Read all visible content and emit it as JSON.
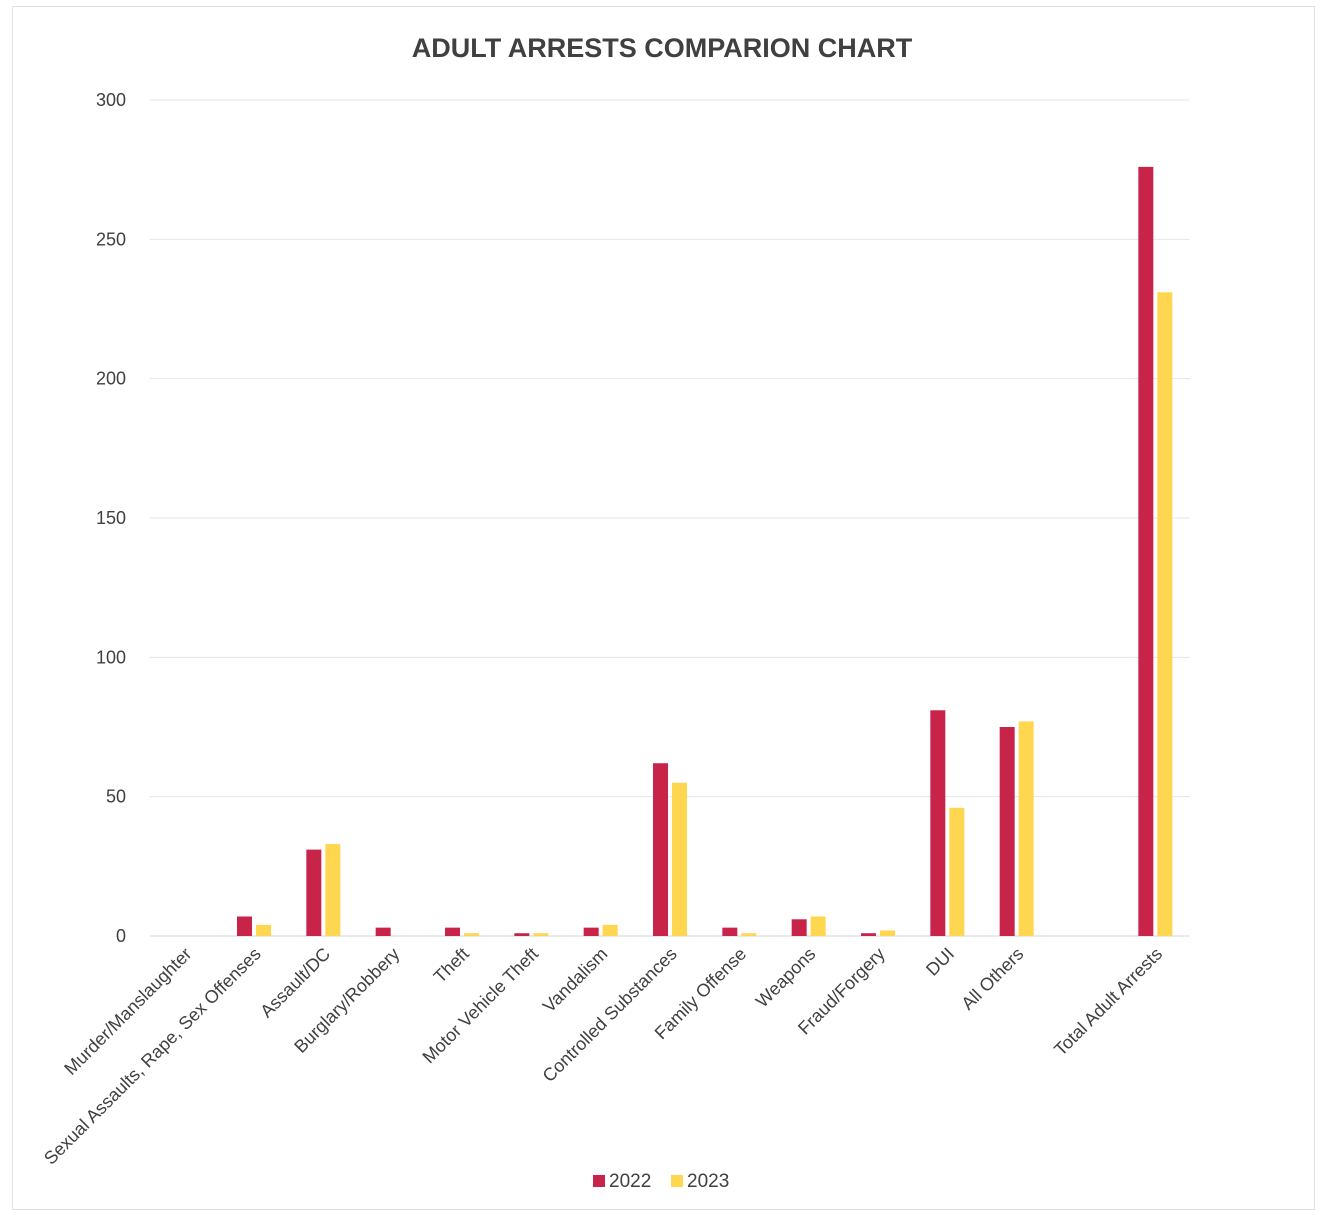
{
  "chart_data": {
    "type": "bar",
    "title": "ADULT ARRESTS COMPARION CHART",
    "xlabel": "",
    "ylabel": "",
    "ylim": [
      0,
      300
    ],
    "yticks": [
      0,
      50,
      100,
      150,
      200,
      250,
      300
    ],
    "grid": true,
    "legend_position": "bottom",
    "categories": [
      "Murder/Manslaughter",
      "Sexual Assaults, Rape, Sex Offenses",
      "Assault/DC",
      "Burglary/Robbery",
      "Theft",
      "Motor Vehicle Theft",
      "Vandalism",
      "Controlled Substances",
      "Family Offense",
      "Weapons",
      "Fraud/Forgery",
      "DUI",
      "All Others",
      "",
      "Total Adult Arrests"
    ],
    "series": [
      {
        "name": "2022",
        "color": "#c8244a",
        "values": [
          0,
          7,
          31,
          3,
          3,
          1,
          3,
          62,
          3,
          6,
          1,
          81,
          75,
          null,
          276
        ]
      },
      {
        "name": "2023",
        "color": "#ffd64f",
        "values": [
          0,
          4,
          33,
          0,
          1,
          1,
          4,
          55,
          1,
          7,
          2,
          46,
          77,
          null,
          231
        ]
      }
    ]
  }
}
